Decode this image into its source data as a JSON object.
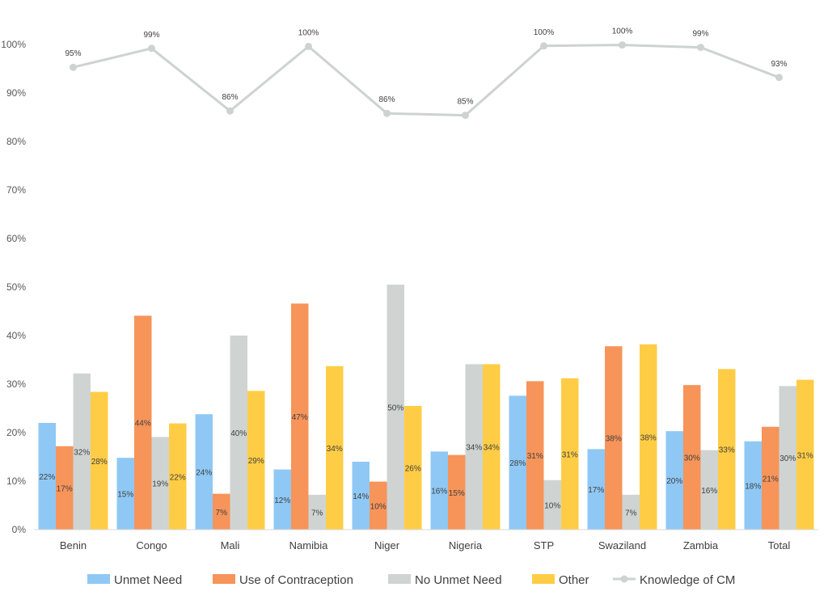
{
  "chart_data": {
    "type": "bar",
    "title": "",
    "xlabel": "",
    "ylabel": "",
    "ylim": [
      0,
      100
    ],
    "yticks": [
      "0%",
      "10%",
      "20%",
      "30%",
      "40%",
      "50%",
      "60%",
      "70%",
      "80%",
      "90%",
      "100%"
    ],
    "categories": [
      "Benin",
      "Congo",
      "Mali",
      "Namibia",
      "Niger",
      "Nigeria",
      "STP",
      "Swaziland",
      "Zambia",
      "Total"
    ],
    "series": [
      {
        "name": "Unmet Need",
        "color": "#8fc8f4",
        "values": [
          22,
          14.8,
          23.8,
          12.4,
          14,
          16.1,
          27.6,
          16.6,
          20.3,
          18.2
        ],
        "labels": [
          "22%",
          "15%",
          "24%",
          "12%",
          "14%",
          "16%",
          "28%",
          "17%",
          "20%",
          "18%"
        ]
      },
      {
        "name": "Use of Contraception",
        "color": "#f7945a",
        "values": [
          17.2,
          44.1,
          7.4,
          46.6,
          9.9,
          15.4,
          30.6,
          37.8,
          29.8,
          21.2
        ],
        "labels": [
          "17%",
          "44%",
          "7%",
          "47%",
          "10%",
          "15%",
          "31%",
          "38%",
          "30%",
          "21%"
        ]
      },
      {
        "name": "No Unmet Need",
        "color": "#cfd4d3",
        "values": [
          32.2,
          19.1,
          40,
          7.2,
          50.5,
          34.1,
          10.2,
          7.2,
          16.4,
          29.6
        ],
        "labels": [
          "32%",
          "19%",
          "40%",
          "7%",
          "50%",
          "34%",
          "10%",
          "7%",
          "16%",
          "30%"
        ]
      },
      {
        "name": "Other",
        "color": "#ffcd45",
        "values": [
          28.4,
          21.9,
          28.6,
          33.7,
          25.5,
          34.1,
          31.2,
          38.2,
          33.1,
          30.9
        ],
        "labels": [
          "28%",
          "22%",
          "29%",
          "34%",
          "26%",
          "34%",
          "31%",
          "38%",
          "33%",
          "31%"
        ]
      }
    ],
    "line_series": {
      "name": "Knowledge of CM",
      "color": "#cdd3d2",
      "values": [
        95.3,
        99.2,
        86.3,
        99.6,
        85.8,
        85.4,
        99.7,
        99.9,
        99.4,
        93.2
      ],
      "labels": [
        "95%",
        "99%",
        "86%",
        "100%",
        "86%",
        "85%",
        "100%",
        "100%",
        "99%",
        "93%"
      ]
    },
    "legend": [
      "Unmet Need",
      "Use of Contraception",
      "No Unmet Need",
      "Other",
      "Knowledge of CM"
    ],
    "legend_position": "bottom",
    "grid": false
  }
}
